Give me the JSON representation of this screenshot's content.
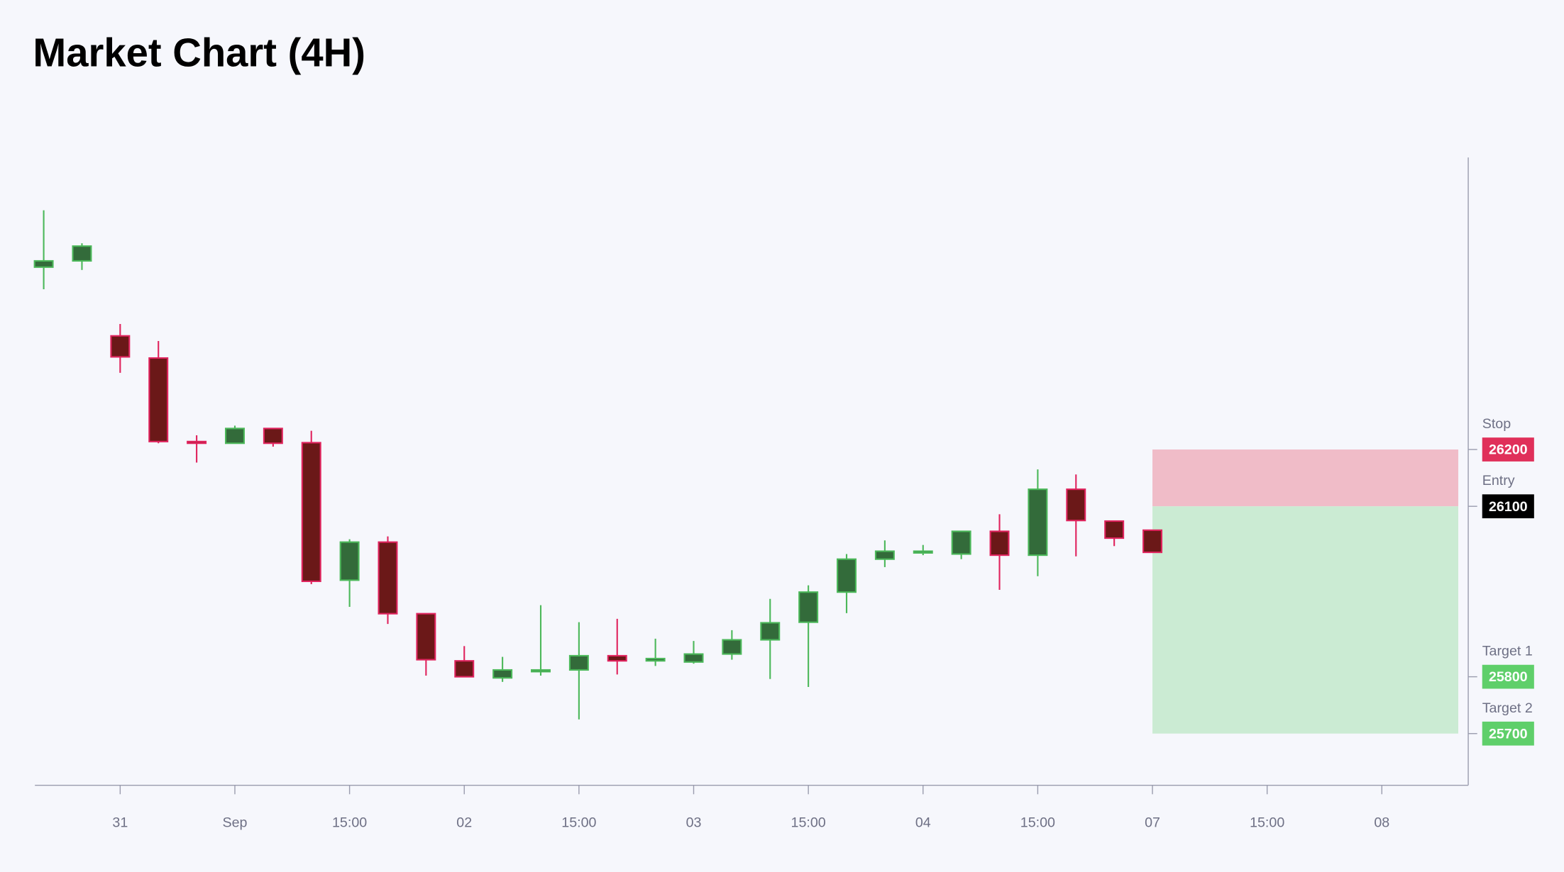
{
  "chart_data": {
    "type": "candlestick",
    "title": "Market Chart (4H)",
    "x": [
      0,
      1,
      2,
      3,
      4,
      5,
      6,
      7,
      8,
      9,
      10,
      11,
      12,
      13,
      14,
      15,
      16,
      17,
      18,
      19,
      20,
      21,
      22,
      23,
      24,
      25,
      26,
      27,
      28,
      29
    ],
    "open": [
      26521,
      26532,
      26400,
      26361,
      26214,
      26211,
      26237,
      26212,
      25970,
      26037,
      25911,
      25828,
      25798,
      25809,
      25812,
      25837,
      25828,
      25826,
      25840,
      25865,
      25896,
      25949,
      26007,
      26018,
      26016,
      26056,
      26014,
      26130,
      26074,
      26058
    ],
    "high": [
      26621,
      26563,
      26421,
      26391,
      26225,
      26242,
      26237,
      26233,
      26042,
      26047,
      25911,
      25854,
      25835,
      25926,
      25896,
      25902,
      25867,
      25863,
      25882,
      25937,
      25961,
      26016,
      26040,
      26032,
      26056,
      26086,
      26165,
      26156,
      26074,
      26058
    ],
    "low": [
      26482,
      26516,
      26335,
      26211,
      26177,
      26211,
      26205,
      25963,
      25923,
      25893,
      25802,
      25800,
      25791,
      25802,
      25725,
      25804,
      25819,
      25823,
      25830,
      25796,
      25782,
      25912,
      25993,
      26014,
      26007,
      25953,
      25977,
      26012,
      26030,
      26018
    ],
    "close": [
      26532,
      26558,
      26363,
      26214,
      26211,
      26237,
      26211,
      25968,
      26037,
      25911,
      25830,
      25800,
      25812,
      25812,
      25837,
      25828,
      25832,
      25840,
      25865,
      25895,
      25949,
      26007,
      26021,
      26021,
      26056,
      26014,
      26130,
      26075,
      26044,
      26019
    ],
    "xlim": [
      -0.23,
      37.26
    ],
    "xticks": [
      {
        "value": 2,
        "label": "31"
      },
      {
        "value": 5,
        "label": "Sep"
      },
      {
        "value": 8,
        "label": "15:00"
      },
      {
        "value": 11,
        "label": "02"
      },
      {
        "value": 14,
        "label": "15:00"
      },
      {
        "value": 17,
        "label": "03"
      },
      {
        "value": 20,
        "label": "15:00"
      },
      {
        "value": 23,
        "label": "04"
      },
      {
        "value": 26,
        "label": "15:00"
      },
      {
        "value": 29,
        "label": "07"
      },
      {
        "value": 32,
        "label": "15:00"
      },
      {
        "value": 35,
        "label": "08"
      }
    ],
    "ylim": [
      25609,
      26714
    ],
    "levels": [
      {
        "name": "Stop",
        "value": 26200,
        "color": "#e0305a"
      },
      {
        "name": "Entry",
        "value": 26100,
        "color": "#000000"
      },
      {
        "name": "Target 1",
        "value": 25800,
        "color": "#5fcf6a"
      },
      {
        "name": "Target 2",
        "value": 25700,
        "color": "#5fcf6a"
      }
    ],
    "up_color": "#336b3a",
    "up_edge": "#4cb85a",
    "down_color": "#6b1818",
    "down_edge": "#e0245e",
    "stop_zone_color": "#f0bcc8",
    "target_zone_color": "#cbebd3"
  }
}
